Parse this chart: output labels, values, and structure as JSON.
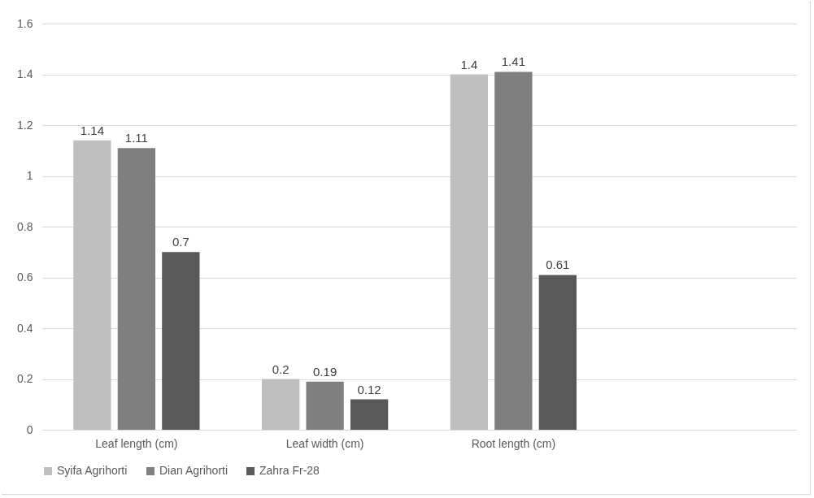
{
  "chart_data": {
    "type": "bar",
    "categories": [
      "Leaf length (cm)",
      "Leaf width (cm)",
      "Root length (cm)",
      null
    ],
    "series": [
      {
        "name": "Syifa Agrihorti",
        "color": "#bfbfbf",
        "values": [
          1.14,
          0.2,
          1.4,
          null
        ]
      },
      {
        "name": "Dian Agrihorti",
        "color": "#7f7f7f",
        "values": [
          1.11,
          0.19,
          1.41,
          null
        ]
      },
      {
        "name": "Zahra Fr-28",
        "color": "#595959",
        "values": [
          0.7,
          0.12,
          0.61,
          null
        ]
      }
    ],
    "ylim": [
      0,
      1.6
    ],
    "yticks": [
      0,
      0.2,
      0.4,
      0.6,
      0.8,
      1,
      1.2,
      1.4,
      1.6
    ],
    "grid": "y",
    "legend": "bottom",
    "data_labels": true
  }
}
